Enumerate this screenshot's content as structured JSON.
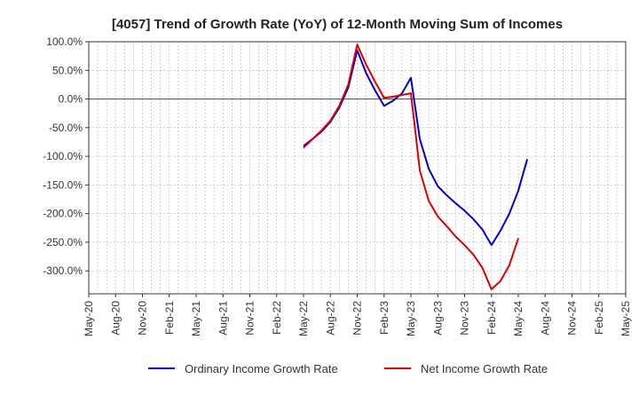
{
  "chart_data": {
    "type": "line",
    "title": "[4057]  Trend of Growth Rate (YoY) of 12-Month Moving Sum of Incomes",
    "xlabel": "",
    "ylabel": "",
    "ylim": [
      -340,
      100
    ],
    "y_ticks": [
      {
        "value": 100,
        "label": "100.0%"
      },
      {
        "value": 50,
        "label": "50.0%"
      },
      {
        "value": 0,
        "label": "0.0%"
      },
      {
        "value": -50,
        "label": "-50.0%"
      },
      {
        "value": -100,
        "label": "-100.0%"
      },
      {
        "value": -150,
        "label": "-150.0%"
      },
      {
        "value": -200,
        "label": "-200.0%"
      },
      {
        "value": -250,
        "label": "-250.0%"
      },
      {
        "value": -300,
        "label": "-300.0%"
      }
    ],
    "x_tick_labels": [
      "May-20",
      "Aug-20",
      "Nov-20",
      "Feb-21",
      "May-21",
      "Aug-21",
      "Nov-21",
      "Feb-22",
      "May-22",
      "Aug-22",
      "Nov-22",
      "Feb-23",
      "May-23",
      "Aug-23",
      "Nov-23",
      "Feb-24",
      "May-24",
      "Aug-24",
      "Nov-24",
      "Feb-25",
      "May-25"
    ],
    "grid": true,
    "legend_position": "bottom",
    "series": [
      {
        "name": "Ordinary Income Growth Rate",
        "color": "#0000cc",
        "points": [
          [
            "2022-05",
            -82
          ],
          [
            "2022-06",
            -70
          ],
          [
            "2022-07",
            -57
          ],
          [
            "2022-08",
            -40
          ],
          [
            "2022-09",
            -15
          ],
          [
            "2022-10",
            20
          ],
          [
            "2022-11",
            85
          ],
          [
            "2022-12",
            45
          ],
          [
            "2023-01",
            15
          ],
          [
            "2023-02",
            -12
          ],
          [
            "2023-03",
            -3
          ],
          [
            "2023-04",
            10
          ],
          [
            "2023-05",
            37
          ],
          [
            "2023-06",
            -70
          ],
          [
            "2023-07",
            -122
          ],
          [
            "2023-08",
            -152
          ],
          [
            "2023-09",
            -168
          ],
          [
            "2023-10",
            -182
          ],
          [
            "2023-11",
            -195
          ],
          [
            "2023-12",
            -210
          ],
          [
            "2024-01",
            -228
          ],
          [
            "2024-02",
            -255
          ],
          [
            "2024-03",
            -230
          ],
          [
            "2024-04",
            -200
          ],
          [
            "2024-05",
            -160
          ],
          [
            "2024-06",
            -105
          ]
        ]
      },
      {
        "name": "Net Income Growth Rate",
        "color": "#dd0000",
        "points": [
          [
            "2022-05",
            -85
          ],
          [
            "2022-06",
            -70
          ],
          [
            "2022-07",
            -55
          ],
          [
            "2022-08",
            -38
          ],
          [
            "2022-09",
            -12
          ],
          [
            "2022-10",
            25
          ],
          [
            "2022-11",
            95
          ],
          [
            "2022-12",
            60
          ],
          [
            "2023-01",
            30
          ],
          [
            "2023-02",
            2
          ],
          [
            "2023-03",
            4
          ],
          [
            "2023-04",
            7
          ],
          [
            "2023-05",
            10
          ],
          [
            "2023-06",
            -125
          ],
          [
            "2023-07",
            -178
          ],
          [
            "2023-08",
            -205
          ],
          [
            "2023-09",
            -222
          ],
          [
            "2023-10",
            -240
          ],
          [
            "2023-11",
            -255
          ],
          [
            "2023-12",
            -272
          ],
          [
            "2024-01",
            -295
          ],
          [
            "2024-02",
            -332
          ],
          [
            "2024-03",
            -318
          ],
          [
            "2024-04",
            -290
          ],
          [
            "2024-05",
            -243
          ]
        ]
      }
    ]
  }
}
